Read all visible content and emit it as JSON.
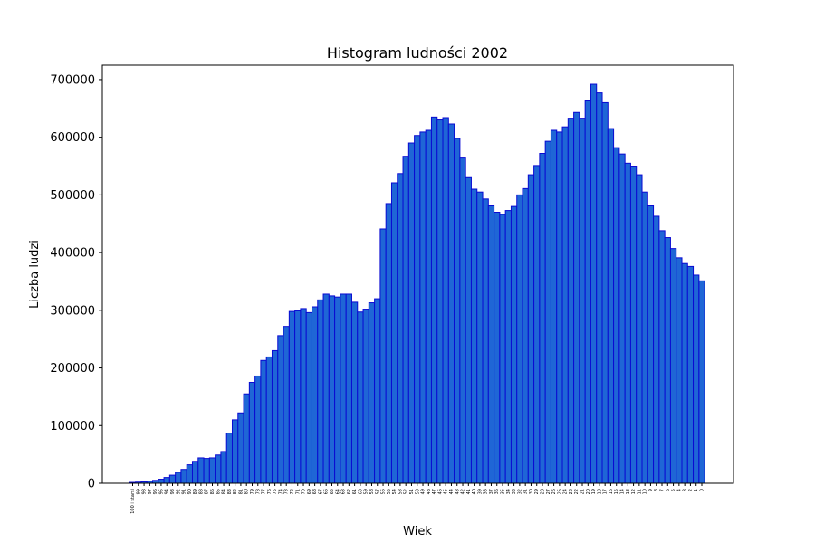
{
  "chart_data": {
    "type": "bar",
    "title": "Histogram ludności 2002",
    "xlabel": "Wiek",
    "ylabel": "Liczba ludzi",
    "ylim": [
      0,
      725000
    ],
    "yticks": [
      0,
      100000,
      200000,
      300000,
      400000,
      500000,
      600000,
      700000
    ],
    "ytick_labels": [
      "0",
      "100000",
      "200000",
      "300000",
      "400000",
      "500000",
      "600000",
      "700000"
    ],
    "grid": false,
    "categories": [
      "100 i starsi",
      "99",
      "98",
      "97",
      "96",
      "95",
      "94",
      "93",
      "92",
      "91",
      "90",
      "89",
      "88",
      "87",
      "86",
      "85",
      "84",
      "83",
      "82",
      "81",
      "80",
      "79",
      "78",
      "77",
      "76",
      "75",
      "74",
      "73",
      "72",
      "71",
      "70",
      "69",
      "68",
      "67",
      "66",
      "65",
      "64",
      "63",
      "62",
      "61",
      "60",
      "59",
      "58",
      "57",
      "56",
      "55",
      "54",
      "53",
      "52",
      "51",
      "50",
      "49",
      "48",
      "47",
      "46",
      "45",
      "44",
      "43",
      "42",
      "41",
      "40",
      "39",
      "38",
      "37",
      "36",
      "35",
      "34",
      "33",
      "32",
      "31",
      "30",
      "29",
      "28",
      "27",
      "26",
      "25",
      "24",
      "23",
      "22",
      "21",
      "20",
      "19",
      "18",
      "17",
      "16",
      "15",
      "14",
      "13",
      "12",
      "11",
      "10",
      "9",
      "8",
      "7",
      "6",
      "5",
      "4",
      "3",
      "2",
      "1",
      "0"
    ],
    "values": [
      1500,
      2000,
      2500,
      3500,
      5000,
      7000,
      10000,
      14000,
      19000,
      24000,
      32000,
      38000,
      44000,
      43000,
      44000,
      49000,
      55000,
      87000,
      110000,
      122000,
      155000,
      175000,
      186000,
      213000,
      219000,
      230000,
      256000,
      272000,
      298000,
      299000,
      303000,
      296000,
      306000,
      318000,
      328000,
      325000,
      323000,
      328000,
      328000,
      314000,
      297000,
      302000,
      313000,
      320000,
      441000,
      485000,
      521000,
      537000,
      567000,
      590000,
      603000,
      609000,
      612000,
      635000,
      630000,
      634000,
      623000,
      598000,
      564000,
      530000,
      510000,
      505000,
      493000,
      481000,
      470000,
      466000,
      473000,
      480000,
      500000,
      511000,
      535000,
      551000,
      572000,
      593000,
      612000,
      609000,
      618000,
      633000,
      643000,
      633000,
      663000,
      692000,
      677000,
      660000,
      615000,
      582000,
      571000,
      555000,
      550000,
      535000,
      505000,
      481000,
      463000,
      438000,
      426000,
      407000,
      391000,
      381000,
      376000,
      361000,
      351000
    ]
  }
}
